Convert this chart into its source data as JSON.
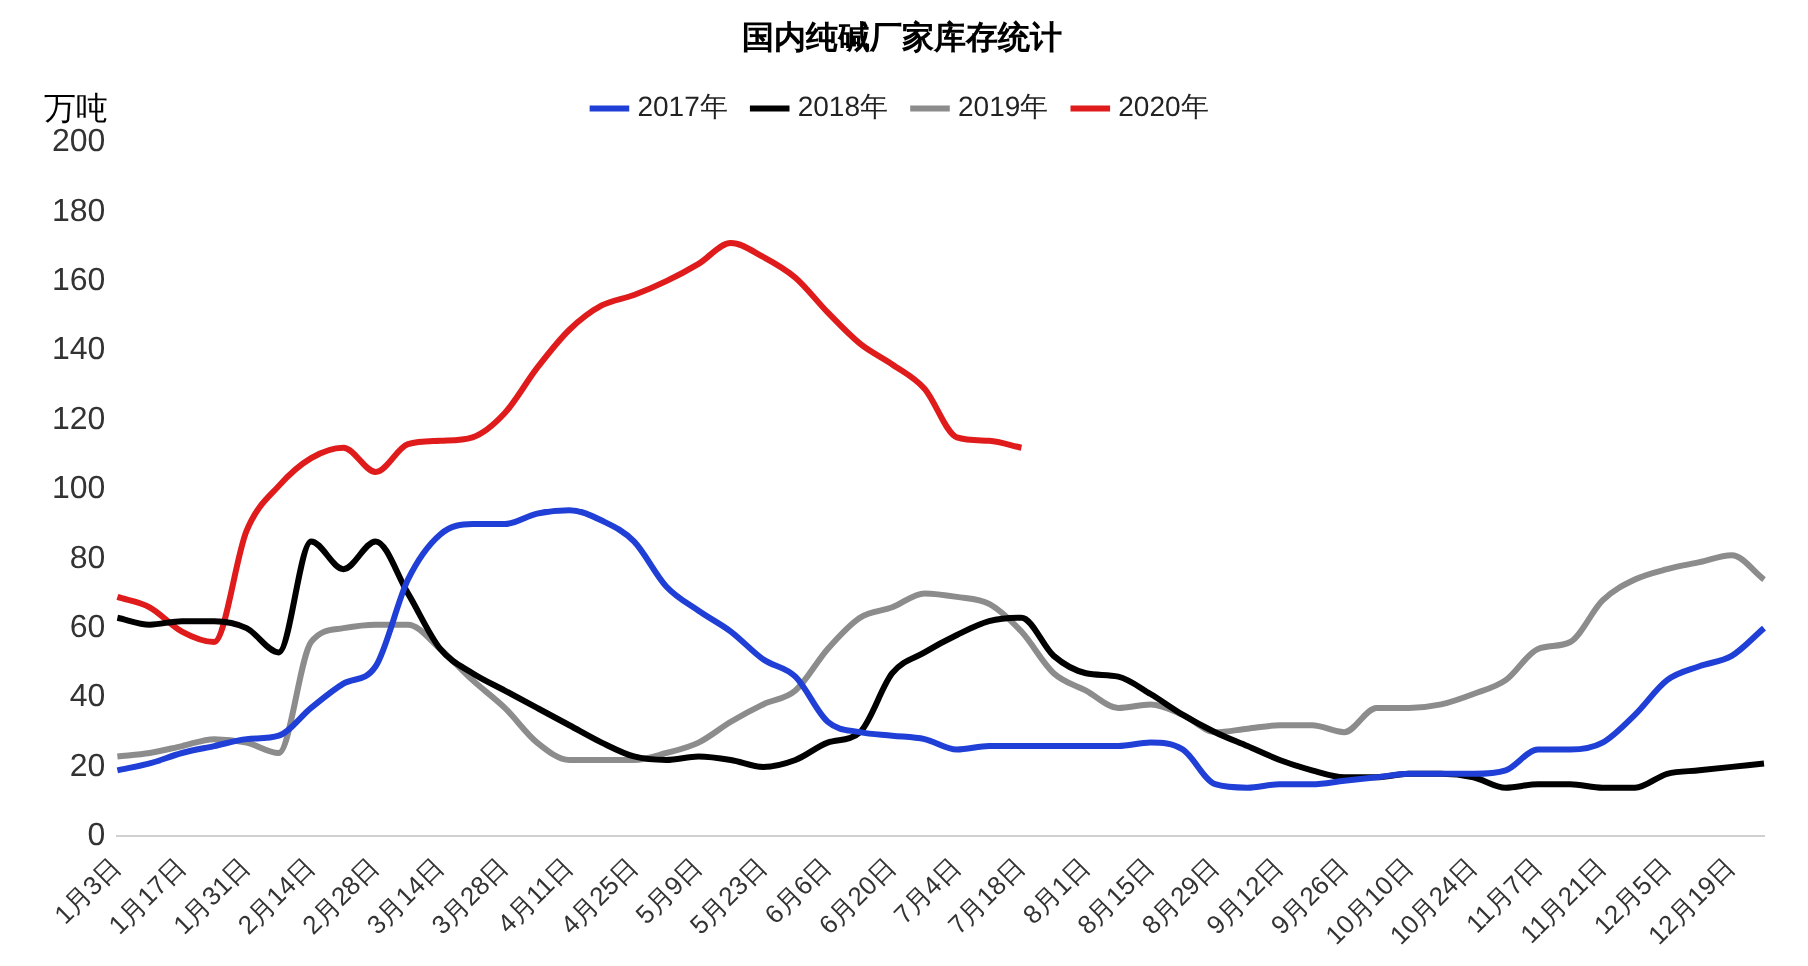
{
  "chart_data": {
    "type": "line",
    "title": "国内纯碱厂家库存统计",
    "ylabel": "万吨",
    "categories": [
      "1月3日",
      null,
      "1月17日",
      null,
      "1月31日",
      null,
      "2月14日",
      null,
      "2月28日",
      null,
      "3月14日",
      null,
      "3月28日",
      null,
      "4月11日",
      null,
      "4月25日",
      null,
      "5月9日",
      null,
      "5月23日",
      null,
      "6月6日",
      null,
      "6月20日",
      null,
      "7月4日",
      null,
      "7月18日",
      null,
      "8月1日",
      null,
      "8月15日",
      null,
      "8月29日",
      null,
      "9月12日",
      null,
      "9月26日",
      null,
      "10月10日",
      null,
      "10月24日",
      null,
      "11月7日",
      null,
      "11月21日",
      null,
      "12月5日",
      null,
      "12月19日",
      null
    ],
    "series": [
      {
        "name": "2017年",
        "color": "#1f3fd6",
        "values": [
          19,
          21,
          24,
          26,
          28,
          29,
          37,
          44,
          49,
          74,
          87,
          90,
          90,
          93,
          94,
          91,
          85,
          72,
          65,
          59,
          51,
          46,
          33,
          30,
          29,
          28,
          25,
          26,
          26,
          26,
          26,
          26,
          27,
          25,
          15,
          14,
          15,
          15,
          16,
          17,
          18,
          18,
          18,
          19,
          25,
          25,
          27,
          35,
          45,
          49,
          52,
          60
        ]
      },
      {
        "name": "2018年",
        "color": "#000000",
        "values": [
          63,
          61,
          62,
          62,
          60,
          53,
          85,
          77,
          85,
          70,
          54,
          47,
          42,
          37,
          32,
          27,
          23,
          22,
          23,
          22,
          20,
          22,
          27,
          30,
          47,
          53,
          58,
          62,
          63,
          52,
          47,
          46,
          41,
          35,
          30,
          26,
          22,
          19,
          17,
          17,
          18,
          18,
          17,
          14,
          15,
          15,
          14,
          14,
          18,
          19,
          20,
          21
        ]
      },
      {
        "name": "2019年",
        "color": "#8c8c8c",
        "values": [
          23,
          24,
          26,
          28,
          27,
          24,
          56,
          60,
          61,
          61,
          54,
          45,
          37,
          27,
          22,
          22,
          22,
          24,
          27,
          33,
          38,
          42,
          54,
          63,
          66,
          70,
          69,
          67,
          59,
          47,
          42,
          37,
          38,
          35,
          30,
          31,
          32,
          32,
          30,
          37,
          37,
          38,
          41,
          45,
          54,
          56,
          68,
          74,
          77,
          79,
          81,
          74
        ]
      },
      {
        "name": "2020年",
        "color": "#e01b1b",
        "values": [
          69,
          66,
          59,
          56,
          88,
          101,
          109,
          112,
          105,
          113,
          114,
          115,
          122,
          135,
          146,
          153,
          156,
          160,
          165,
          171,
          167,
          161,
          151,
          142,
          136,
          129,
          115,
          114,
          112,
          null,
          null,
          null,
          null,
          null,
          null,
          null,
          null,
          null,
          null,
          null,
          null,
          null,
          null,
          null,
          null,
          null,
          null,
          null,
          null,
          null,
          null,
          null
        ]
      }
    ],
    "ylim": [
      0,
      200
    ],
    "yticks": [
      0,
      20,
      40,
      60,
      80,
      100,
      120,
      140,
      160,
      180,
      200
    ],
    "grid": false,
    "legend": "top",
    "marker": "none",
    "line_style": "solid"
  }
}
